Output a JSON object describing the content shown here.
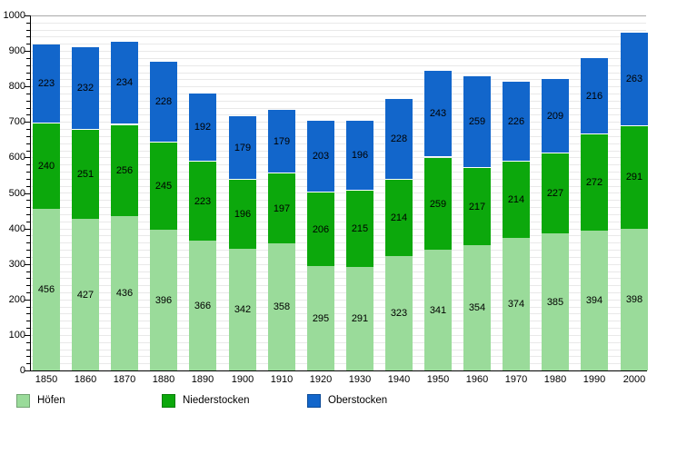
{
  "chart_data": {
    "type": "bar",
    "stacked": true,
    "title": "",
    "xlabel": "",
    "ylabel": "",
    "ylim": [
      0,
      1000
    ],
    "y_tick_step": 100,
    "y_minor_step": 20,
    "grid": true,
    "legend_position": "bottom",
    "y_tick_labels": [
      "0",
      "100",
      "200",
      "300",
      "400",
      "500",
      "600",
      "700",
      "800",
      "900",
      "1000"
    ],
    "categories": [
      "1850",
      "1860",
      "1870",
      "1880",
      "1890",
      "1900",
      "1910",
      "1920",
      "1930",
      "1940",
      "1950",
      "1960",
      "1970",
      "1980",
      "1990",
      "2000"
    ],
    "series": [
      {
        "name": "Höfen",
        "color": "#9adb9a",
        "values": [
          456,
          427,
          436,
          396,
          366,
          342,
          358,
          295,
          291,
          323,
          341,
          354,
          374,
          385,
          394,
          398
        ]
      },
      {
        "name": "Niederstocken",
        "color": "#0ca80c",
        "values": [
          240,
          251,
          256,
          245,
          223,
          196,
          197,
          206,
          215,
          214,
          259,
          217,
          214,
          227,
          272,
          291
        ]
      },
      {
        "name": "Oberstocken",
        "color": "#1266cb",
        "values": [
          223,
          232,
          234,
          228,
          192,
          179,
          179,
          203,
          196,
          228,
          243,
          259,
          226,
          209,
          216,
          263
        ]
      }
    ],
    "colors": {
      "grid": "#e9e9e9",
      "grid_top": "#a9a9a9",
      "axis": "#000000",
      "label_text": "#000000",
      "background": "#ffffff"
    }
  },
  "legend": {
    "items": [
      {
        "label": "Höfen"
      },
      {
        "label": "Niederstocken"
      },
      {
        "label": "Oberstocken"
      }
    ]
  }
}
